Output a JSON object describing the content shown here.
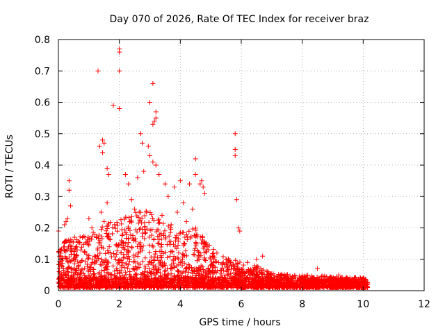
{
  "chart_data": {
    "type": "scatter",
    "title": "Day 070 of 2026, Rate Of TEC Index for receiver braz",
    "xlabel": "GPS time / hours",
    "ylabel": "ROTI / TECUs",
    "xlim": [
      0,
      12
    ],
    "ylim": [
      0,
      0.8
    ],
    "xticks": [
      0,
      2,
      4,
      6,
      8,
      10,
      12
    ],
    "xtick_labels": [
      "0",
      "2",
      "4",
      "6",
      "8",
      "10",
      "12"
    ],
    "yticks": [
      0,
      0.1,
      0.2,
      0.3,
      0.4,
      0.5,
      0.6,
      0.7,
      0.8
    ],
    "ytick_labels": [
      "0",
      "0.1",
      "0.2",
      "0.3",
      "0.4",
      "0.5",
      "0.6",
      "0.7",
      "0.8"
    ],
    "grid": true,
    "marker": "plus",
    "color": "#ff0000",
    "series": [
      {
        "name": "ROTI",
        "points": [
          [
            1.3,
            0.7
          ],
          [
            2.0,
            0.77
          ],
          [
            2.0,
            0.76
          ],
          [
            2.0,
            0.7
          ],
          [
            1.8,
            0.59
          ],
          [
            2.0,
            0.58
          ],
          [
            3.1,
            0.66
          ],
          [
            3.2,
            0.57
          ],
          [
            3.2,
            0.55
          ],
          [
            3.15,
            0.54
          ],
          [
            3.1,
            0.53
          ],
          [
            3.0,
            0.6
          ],
          [
            1.35,
            0.46
          ],
          [
            1.45,
            0.48
          ],
          [
            1.45,
            0.44
          ],
          [
            1.5,
            0.47
          ],
          [
            1.6,
            0.39
          ],
          [
            1.65,
            0.37
          ],
          [
            2.7,
            0.5
          ],
          [
            2.75,
            0.47
          ],
          [
            2.95,
            0.46
          ],
          [
            3.0,
            0.43
          ],
          [
            3.1,
            0.41
          ],
          [
            3.2,
            0.4
          ],
          [
            2.8,
            0.38
          ],
          [
            2.6,
            0.36
          ],
          [
            2.2,
            0.37
          ],
          [
            2.3,
            0.34
          ],
          [
            2.4,
            0.29
          ],
          [
            2.5,
            0.26
          ],
          [
            4.5,
            0.42
          ],
          [
            4.5,
            0.37
          ],
          [
            4.7,
            0.35
          ],
          [
            4.65,
            0.34
          ],
          [
            4.75,
            0.33
          ],
          [
            4.8,
            0.31
          ],
          [
            5.8,
            0.5
          ],
          [
            5.8,
            0.45
          ],
          [
            5.8,
            0.43
          ],
          [
            5.85,
            0.29
          ],
          [
            5.9,
            0.2
          ],
          [
            5.95,
            0.19
          ],
          [
            0.35,
            0.35
          ],
          [
            0.35,
            0.32
          ],
          [
            0.4,
            0.27
          ],
          [
            0.3,
            0.23
          ],
          [
            0.25,
            0.22
          ],
          [
            0.2,
            0.21
          ],
          [
            1.0,
            0.23
          ],
          [
            1.1,
            0.2
          ],
          [
            1.2,
            0.18
          ],
          [
            1.4,
            0.25
          ],
          [
            1.5,
            0.22
          ],
          [
            1.6,
            0.28
          ],
          [
            3.5,
            0.34
          ],
          [
            3.6,
            0.3
          ],
          [
            3.8,
            0.33
          ],
          [
            4.0,
            0.35
          ],
          [
            4.1,
            0.28
          ],
          [
            4.3,
            0.34
          ],
          [
            3.3,
            0.37
          ],
          [
            3.4,
            0.24
          ],
          [
            3.7,
            0.21
          ],
          [
            3.9,
            0.25
          ],
          [
            4.2,
            0.22
          ],
          [
            4.4,
            0.26
          ],
          [
            5.2,
            0.12
          ],
          [
            5.5,
            0.1
          ],
          [
            5.6,
            0.08
          ],
          [
            6.2,
            0.09
          ],
          [
            6.5,
            0.1
          ],
          [
            6.7,
            0.11
          ],
          [
            0.0,
            0.19
          ],
          [
            0.05,
            0.13
          ],
          [
            0.1,
            0.08
          ],
          [
            8.5,
            0.07
          ],
          [
            9.2,
            0.05
          ],
          [
            10.0,
            0.04
          ]
        ]
      }
    ]
  }
}
